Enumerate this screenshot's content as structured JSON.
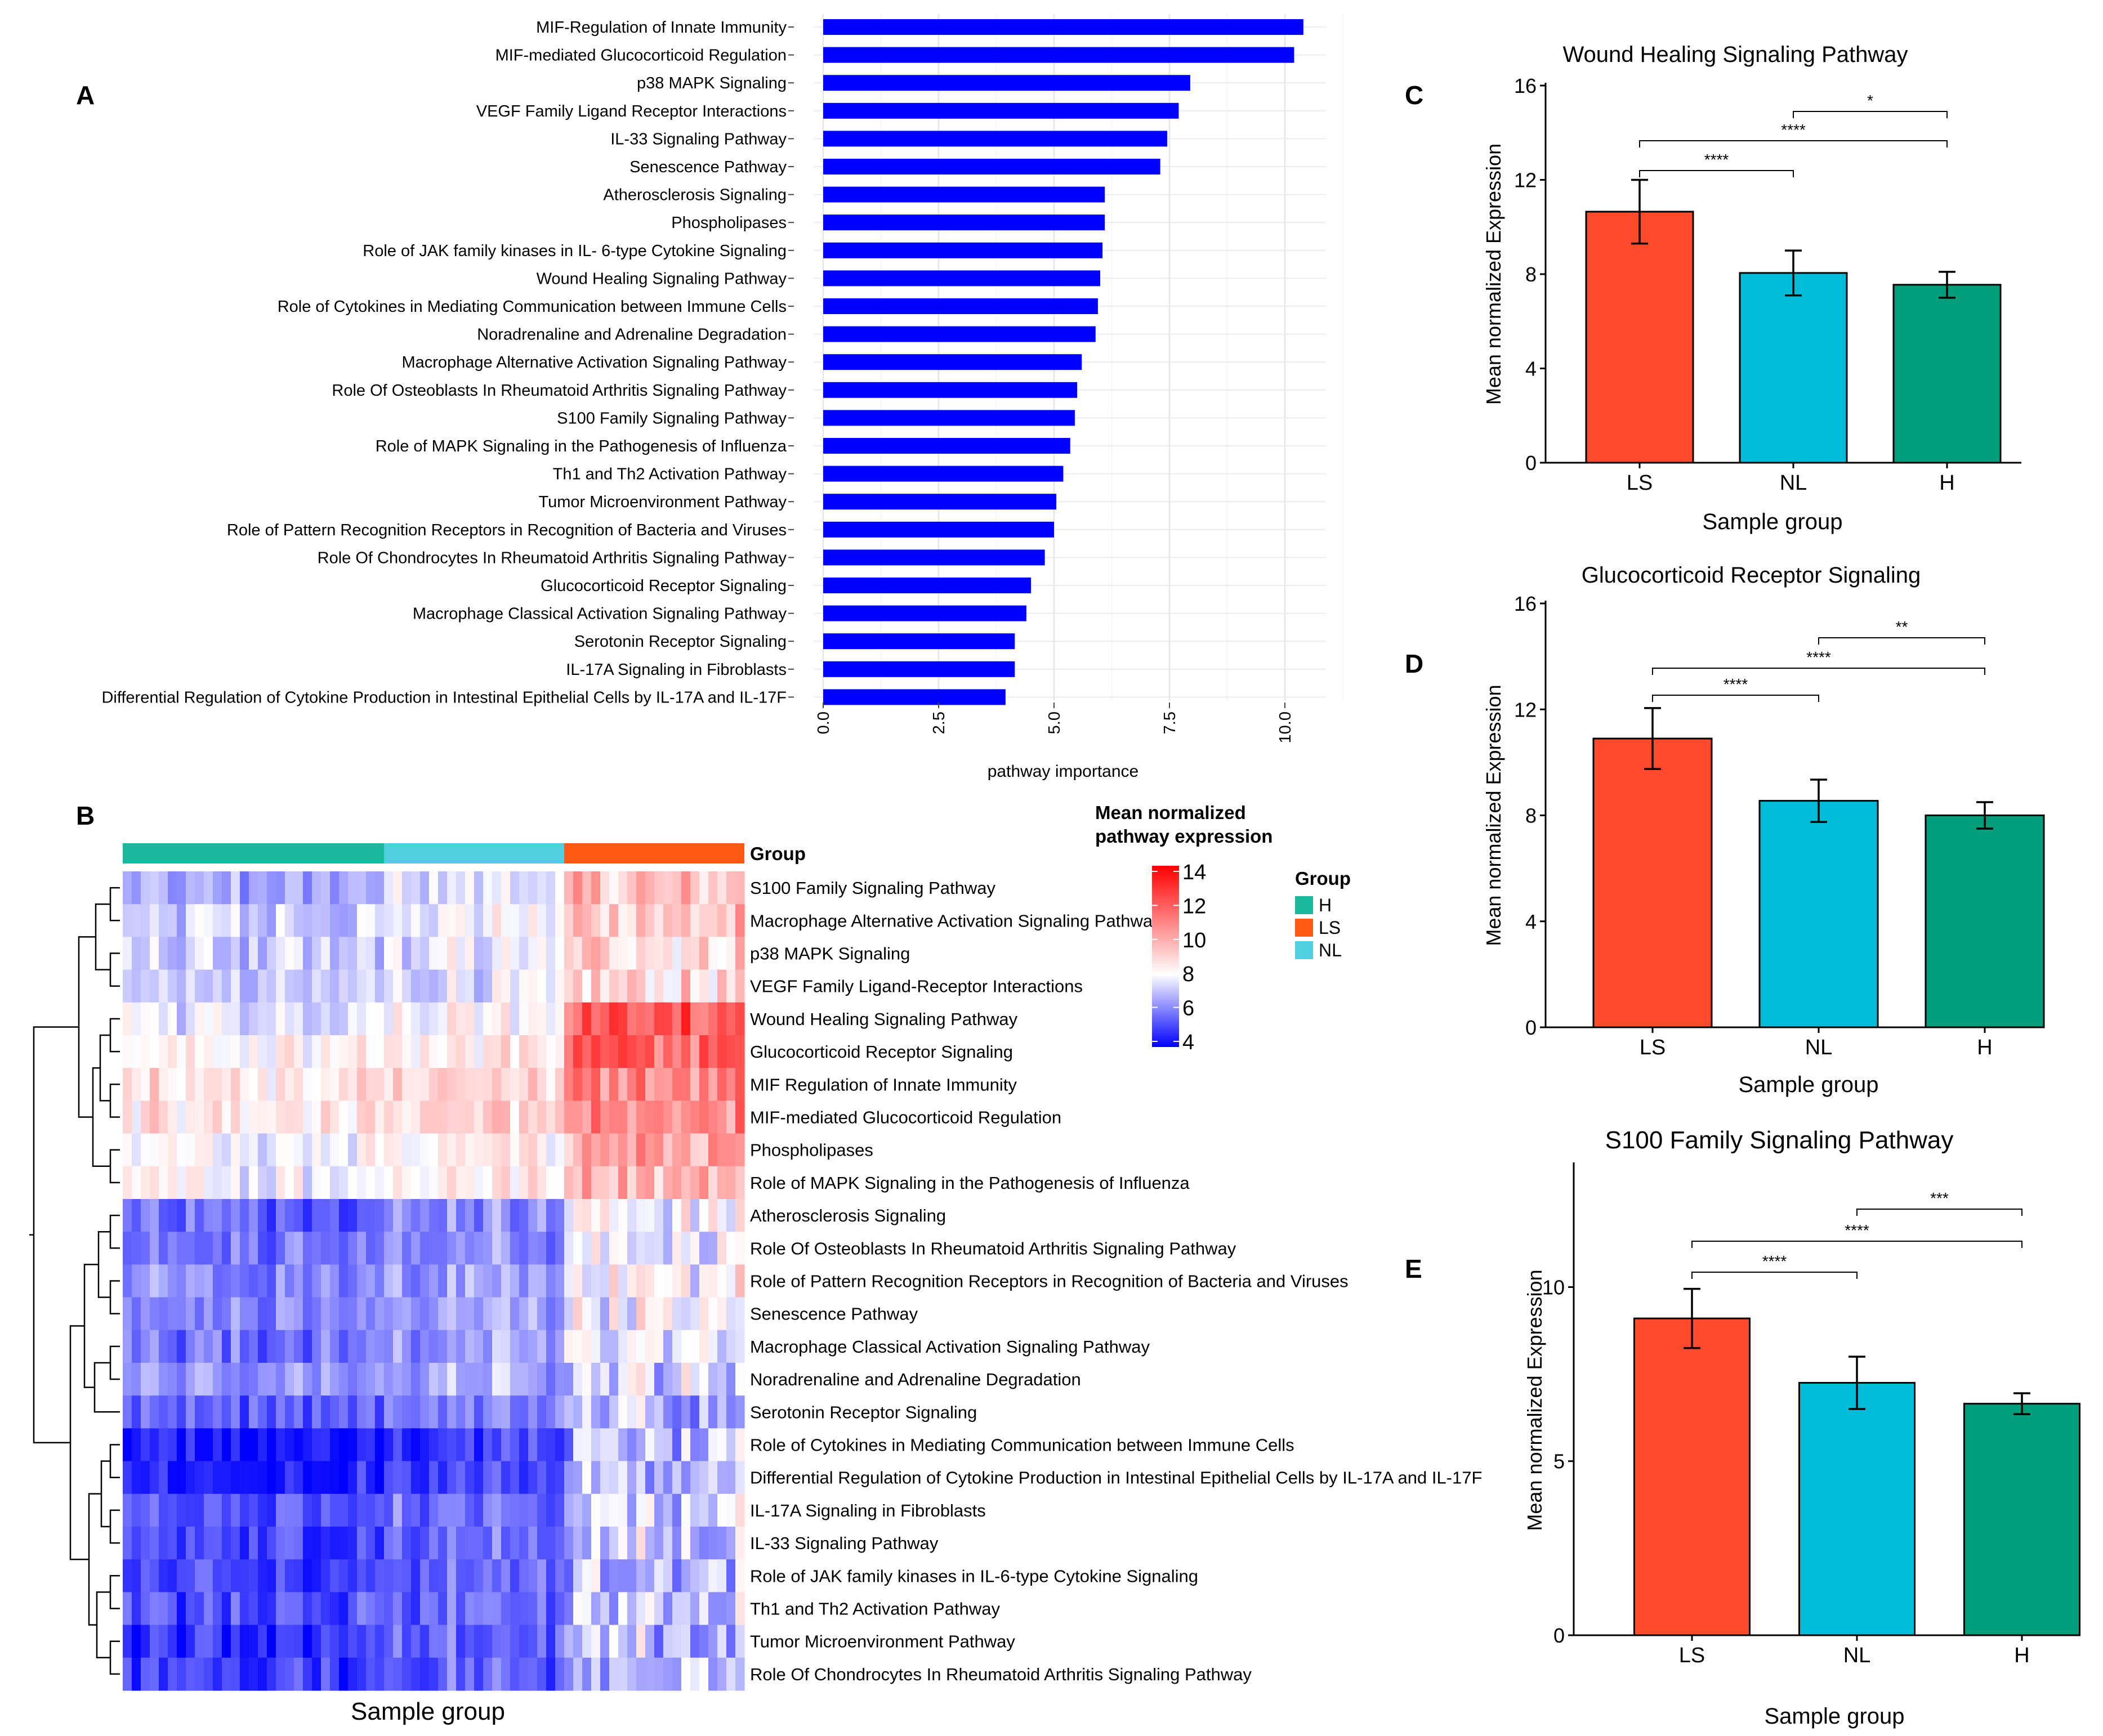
{
  "panel_labels": {
    "A": "A",
    "B": "B",
    "C": "C",
    "D": "D",
    "E": "E"
  },
  "chart_data": [
    {
      "id": "A",
      "type": "bar",
      "orientation": "horizontal",
      "title": "",
      "xlabel": "pathway importance",
      "ylabel": "",
      "xlim": [
        0,
        11
      ],
      "ticks": [
        "0.0",
        "2.5",
        "5.0",
        "7.5",
        "10.0"
      ],
      "tick_values": [
        0,
        2.5,
        5,
        7.5,
        10
      ],
      "bar_color": "#0000ff",
      "categories": [
        "MIF-Regulation of Innate Immunity",
        "MIF-mediated Glucocorticoid Regulation",
        "p38 MAPK Signaling",
        "VEGF Family Ligand Receptor Interactions",
        "IL-33 Signaling Pathway",
        "Senescence Pathway",
        "Atherosclerosis Signaling",
        "Phospholipases",
        "Role of JAK family kinases in IL- 6-type Cytokine Signaling",
        "Wound Healing Signaling Pathway",
        "Role of Cytokines in Mediating Communication between Immune Cells",
        "Noradrenaline and Adrenaline Degradation",
        "Macrophage Alternative Activation Signaling Pathway",
        "Role Of Osteoblasts In Rheumatoid Arthritis Signaling Pathway",
        "S100 Family Signaling Pathway",
        "Role of MAPK Signaling in the Pathogenesis of Influenza",
        "Th1 and Th2 Activation Pathway",
        "Tumor Microenvironment Pathway",
        "Role of Pattern Recognition Receptors in Recognition of Bacteria and Viruses",
        "Role Of Chondrocytes In Rheumatoid Arthritis Signaling Pathway",
        "Glucocorticoid Receptor Signaling",
        "Macrophage Classical Activation Signaling Pathway",
        "Serotonin Receptor Signaling",
        "IL-17A Signaling in Fibroblasts",
        "Differential Regulation of Cytokine Production in Intestinal Epithelial Cells by IL-17A and IL-17F"
      ],
      "values": [
        10.4,
        10.2,
        7.95,
        7.7,
        7.45,
        7.3,
        6.1,
        6.1,
        6.05,
        6.0,
        5.95,
        5.9,
        5.6,
        5.5,
        5.45,
        5.35,
        5.2,
        5.05,
        5.0,
        4.8,
        4.5,
        4.4,
        4.15,
        4.15,
        3.95
      ]
    },
    {
      "id": "B",
      "type": "heatmap",
      "title": "",
      "xlabel": "Sample group",
      "group_row_label": "Group",
      "colorbar_title": [
        "Mean normalized",
        "pathway   expression"
      ],
      "colorbar_ticks": [
        "14",
        "12",
        "10",
        "8",
        "6",
        "4"
      ],
      "colorbar_tick_values": [
        14,
        12,
        10,
        8,
        6,
        4
      ],
      "color_range": [
        4,
        14
      ],
      "legend_title": "Group",
      "legend": [
        {
          "name": "H",
          "color": "#1ab89c"
        },
        {
          "name": "LS",
          "color": "#ff5a14"
        },
        {
          "name": "NL",
          "color": "#4fcfe0"
        }
      ],
      "sample_groups": [
        {
          "name": "H",
          "count": 29,
          "color": "#1ab89c"
        },
        {
          "name": "NL",
          "count": 20,
          "color": "#4fcfe0"
        },
        {
          "name": "LS",
          "count": 20,
          "color": "#ff5a14"
        }
      ],
      "rows": [
        {
          "label": "S100 Family Signaling Pathway",
          "H": 6.5,
          "NL": 7.5,
          "LS": 9.5
        },
        {
          "label": "Macrophage Alternative Activation Signaling Pathway",
          "H": 7.2,
          "NL": 7.8,
          "LS": 9.5
        },
        {
          "label": "p38 MAPK Signaling",
          "H": 7.0,
          "NL": 7.6,
          "LS": 9.2
        },
        {
          "label": "VEGF Family Ligand-Receptor Interactions",
          "H": 7.0,
          "NL": 7.5,
          "LS": 9.0
        },
        {
          "label": "Wound Healing Signaling Pathway",
          "H": 7.6,
          "NL": 8.2,
          "LS": 12.0
        },
        {
          "label": "Glucocorticoid Receptor Signaling",
          "H": 8.0,
          "NL": 8.6,
          "LS": 11.8
        },
        {
          "label": "MIF Regulation of Innate Immunity",
          "H": 8.6,
          "NL": 9.0,
          "LS": 10.8
        },
        {
          "label": "MIF-mediated Glucocorticoid Regulation",
          "H": 8.5,
          "NL": 8.9,
          "LS": 10.6
        },
        {
          "label": "Phospholipases",
          "H": 7.8,
          "NL": 8.3,
          "LS": 10.3
        },
        {
          "label": "Role of MAPK Signaling in the Pathogenesis of Influenza",
          "H": 7.9,
          "NL": 8.4,
          "LS": 10.1
        },
        {
          "label": "Atherosclerosis Signaling",
          "H": 5.6,
          "NL": 6.2,
          "LS": 8.1
        },
        {
          "label": "Role Of Osteoblasts In Rheumatoid Arthritis Signaling Pathway",
          "H": 5.7,
          "NL": 6.2,
          "LS": 8.0
        },
        {
          "label": "Role of Pattern Recognition Receptors in Recognition of Bacteria and Viruses",
          "H": 5.9,
          "NL": 6.4,
          "LS": 8.3
        },
        {
          "label": "Senescence Pathway",
          "H": 6.0,
          "NL": 6.5,
          "LS": 8.0
        },
        {
          "label": "Macrophage Classical Activation Signaling Pathway",
          "H": 5.8,
          "NL": 6.4,
          "LS": 7.9
        },
        {
          "label": "Noradrenaline and Adrenaline Degradation",
          "H": 6.2,
          "NL": 6.7,
          "LS": 7.6
        },
        {
          "label": "Serotonin Receptor Signaling",
          "H": 5.5,
          "NL": 5.9,
          "LS": 7.1
        },
        {
          "label": "Role of Cytokines in Mediating Communication between Immune Cells",
          "H": 4.3,
          "NL": 5.0,
          "LS": 6.9
        },
        {
          "label": "Differential Regulation of Cytokine Production in Intestinal Epithelial Cells by IL-17A and IL-17F",
          "H": 4.4,
          "NL": 5.1,
          "LS": 7.0
        },
        {
          "label": "IL-17A Signaling in Fibroblasts",
          "H": 5.1,
          "NL": 5.7,
          "LS": 7.3
        },
        {
          "label": "IL-33 Signaling Pathway",
          "H": 5.0,
          "NL": 5.6,
          "LS": 7.2
        },
        {
          "label": "Role of JAK family kinases in IL-6-type Cytokine Signaling",
          "H": 5.0,
          "NL": 5.6,
          "LS": 7.1
        },
        {
          "label": "Th1 and Th2 Activation Pathway",
          "H": 5.1,
          "NL": 5.7,
          "LS": 7.2
        },
        {
          "label": "Tumor Microenvironment Pathway",
          "H": 4.8,
          "NL": 5.4,
          "LS": 7.1
        },
        {
          "label": "Role Of Chondrocytes In Rheumatoid Arthritis Signaling Pathway",
          "H": 4.9,
          "NL": 5.5,
          "LS": 7.2
        }
      ]
    },
    {
      "id": "C",
      "type": "bar",
      "title": "Wound Healing Signaling Pathway",
      "xlabel": "Sample group",
      "ylabel": "Mean normalized Expression",
      "ylim": [
        0,
        16
      ],
      "yticks": [
        "0",
        "4",
        "8",
        "12",
        "16"
      ],
      "ytick_values": [
        0,
        4,
        8,
        12,
        16
      ],
      "categories": [
        "LS",
        "NL",
        "H"
      ],
      "values": [
        10.65,
        8.05,
        7.55
      ],
      "errors": [
        1.35,
        0.95,
        0.55
      ],
      "colors": [
        "#ff4b2b",
        "#00bcd8",
        "#009e7a"
      ],
      "significance": [
        {
          "from": 0,
          "to": 1,
          "label": "****"
        },
        {
          "from": 0,
          "to": 2,
          "label": "****"
        },
        {
          "from": 1,
          "to": 2,
          "label": "*"
        }
      ]
    },
    {
      "id": "D",
      "type": "bar",
      "title": "Glucocorticoid Receptor Signaling",
      "xlabel": "Sample group",
      "ylabel": "Mean normalized Expression",
      "ylim": [
        0,
        16
      ],
      "yticks": [
        "0",
        "4",
        "8",
        "12",
        "16"
      ],
      "ytick_values": [
        0,
        4,
        8,
        12,
        16
      ],
      "categories": [
        "LS",
        "NL",
        "H"
      ],
      "values": [
        10.9,
        8.55,
        8.0
      ],
      "errors": [
        1.15,
        0.8,
        0.5
      ],
      "colors": [
        "#ff4b2b",
        "#00bcd8",
        "#009e7a"
      ],
      "significance": [
        {
          "from": 0,
          "to": 1,
          "label": "****"
        },
        {
          "from": 0,
          "to": 2,
          "label": "****"
        },
        {
          "from": 1,
          "to": 2,
          "label": "**"
        }
      ]
    },
    {
      "id": "E",
      "type": "bar",
      "title": "S100 Family Signaling Pathway",
      "xlabel": "Sample group",
      "ylabel": "Mean normalized Expression",
      "ylim": [
        0,
        13.5
      ],
      "yticks": [
        "0",
        "5",
        "10"
      ],
      "ytick_values": [
        0,
        5,
        10
      ],
      "categories": [
        "LS",
        "NL",
        "H"
      ],
      "values": [
        9.1,
        7.25,
        6.65
      ],
      "errors": [
        0.85,
        0.75,
        0.3
      ],
      "colors": [
        "#ff4b2b",
        "#00bcd8",
        "#009e7a"
      ],
      "significance": [
        {
          "from": 0,
          "to": 1,
          "label": "****"
        },
        {
          "from": 0,
          "to": 2,
          "label": "****"
        },
        {
          "from": 1,
          "to": 2,
          "label": "***"
        }
      ]
    }
  ]
}
